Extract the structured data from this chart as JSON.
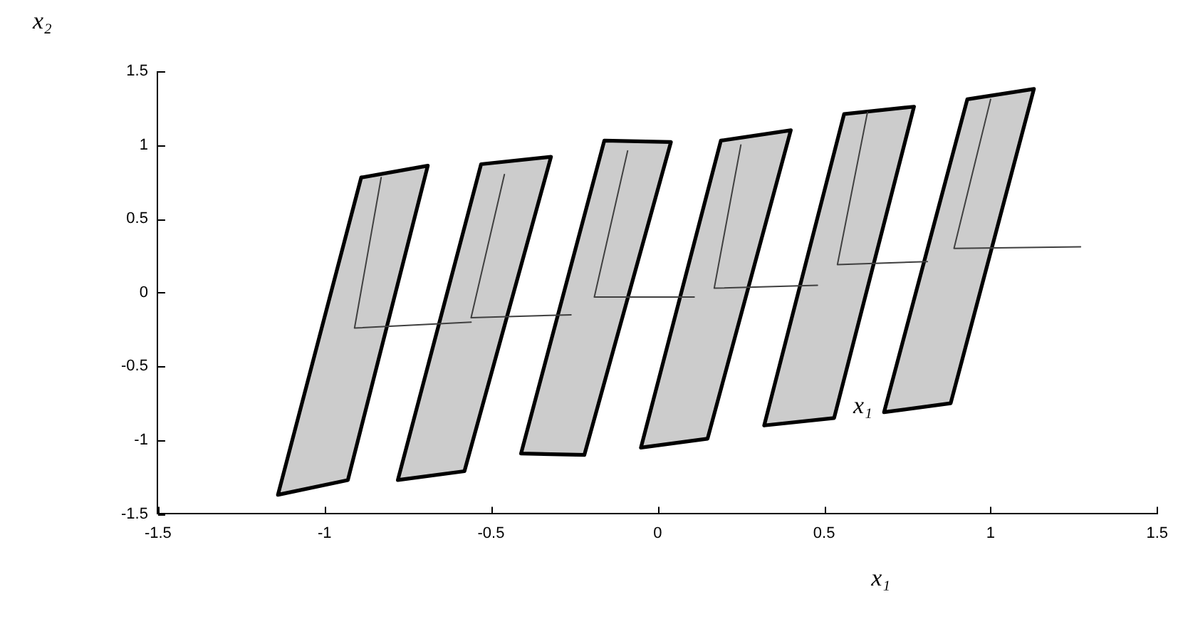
{
  "chart_data": {
    "type": "area",
    "xlabel": "x₁",
    "ylabel": "x₂",
    "xlim": [
      -1.5,
      1.5
    ],
    "ylim": [
      -1.5,
      1.5
    ],
    "xticks": [
      -1.5,
      -1,
      -0.5,
      0,
      0.5,
      1,
      1.5
    ],
    "yticks": [
      -1.5,
      -1,
      -0.5,
      0,
      0.5,
      1,
      1.5
    ],
    "annotations": [
      "x₁"
    ],
    "series": [
      {
        "color": "#000000",
        "x": [
          -1.14,
          -0.93,
          -0.69,
          -0.89,
          -1.14
        ],
        "values": [
          -1.37,
          -1.27,
          0.86,
          0.78,
          -1.37
        ]
      },
      {
        "color": "#000000",
        "x": [
          -0.78,
          -0.58,
          -0.32,
          -0.53,
          -0.78
        ],
        "values": [
          -1.27,
          -1.21,
          0.92,
          0.87,
          -1.27
        ]
      },
      {
        "color": "#000000",
        "x": [
          -0.41,
          -0.22,
          0.04,
          -0.16,
          -0.41
        ],
        "values": [
          -1.09,
          -1.1,
          1.02,
          1.03,
          -1.09
        ]
      },
      {
        "color": "#000000",
        "x": [
          -0.05,
          0.15,
          0.4,
          0.19,
          -0.05
        ],
        "values": [
          -1.05,
          -0.99,
          1.1,
          1.03,
          -1.05
        ]
      },
      {
        "color": "#000000",
        "x": [
          0.32,
          0.53,
          0.77,
          0.56,
          0.32
        ],
        "values": [
          -0.9,
          -0.85,
          1.26,
          1.21,
          -0.9
        ]
      },
      {
        "color": "#000000",
        "x": [
          0.68,
          0.88,
          1.13,
          0.93,
          0.68
        ],
        "values": [
          -0.81,
          -0.75,
          1.38,
          1.31,
          -0.81
        ]
      },
      {
        "type": "line",
        "color": "#404040",
        "x": [
          -0.83,
          -0.91,
          -0.56
        ],
        "values": [
          0.78,
          -0.24,
          -0.2
        ]
      },
      {
        "type": "line",
        "color": "#404040",
        "x": [
          -0.46,
          -0.56,
          -0.26
        ],
        "values": [
          0.8,
          -0.17,
          -0.15
        ]
      },
      {
        "type": "line",
        "color": "#404040",
        "x": [
          -0.09,
          -0.19,
          0.11
        ],
        "values": [
          0.96,
          -0.03,
          -0.03
        ]
      },
      {
        "type": "line",
        "color": "#404040",
        "x": [
          0.25,
          0.17,
          0.48
        ],
        "values": [
          1.0,
          0.03,
          0.05
        ]
      },
      {
        "type": "line",
        "color": "#404040",
        "x": [
          0.63,
          0.54,
          0.81
        ],
        "values": [
          1.22,
          0.19,
          0.21
        ]
      },
      {
        "type": "line",
        "color": "#404040",
        "x": [
          1.0,
          0.89,
          1.27
        ],
        "values": [
          1.31,
          0.3,
          0.31
        ]
      }
    ]
  }
}
